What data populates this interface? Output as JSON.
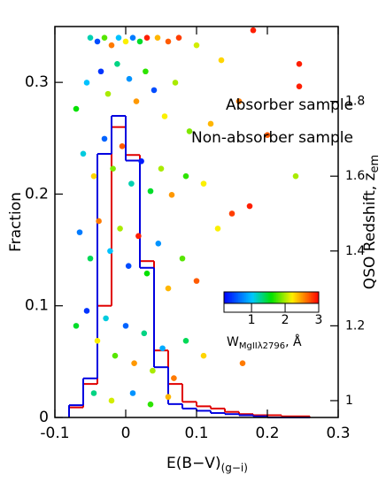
{
  "chart_data": [
    {
      "type": "histogram",
      "xlabel": {
        "text": "E(B−V)",
        "sub": "(g−i)"
      },
      "ylabel": "Fraction",
      "xlim": [
        -0.1,
        0.3
      ],
      "xticks": [
        -0.1,
        0,
        0.1,
        0.2,
        0.3
      ],
      "ylim": [
        0,
        0.35
      ],
      "yticks": [
        0,
        0.1,
        0.2,
        0.3
      ],
      "bins": [
        -0.08,
        -0.06,
        -0.04,
        -0.02,
        0,
        0.02,
        0.04,
        0.06,
        0.08,
        0.1,
        0.12,
        0.14,
        0.16,
        0.18,
        0.2,
        0.22,
        0.24,
        0.26
      ],
      "series": [
        {
          "name": "Absorber sample",
          "color": "#e00000",
          "values": [
            0.009,
            0.03,
            0.1,
            0.26,
            0.235,
            0.14,
            0.06,
            0.03,
            0.014,
            0.01,
            0.008,
            0.005,
            0.003,
            0.002,
            0.002,
            0.001,
            0.001
          ]
        },
        {
          "name": "Non-absorber sample",
          "color": "#0000e0",
          "values": [
            0.011,
            0.035,
            0.236,
            0.27,
            0.23,
            0.134,
            0.045,
            0.012,
            0.008,
            0.006,
            0.004,
            0.003,
            0.002,
            0.001,
            0,
            0,
            0
          ]
        }
      ]
    },
    {
      "type": "scatter",
      "y2label": {
        "text": "QSO Redshift, z",
        "sub": "em"
      },
      "y2lim": [
        0.955,
        2.0
      ],
      "y2ticks": [
        1,
        1.2,
        1.4,
        1.6,
        1.8
      ],
      "colorbar": {
        "clim": [
          0.18,
          3.0
        ],
        "ticks": [
          1,
          2,
          3
        ],
        "label": {
          "text": "W",
          "sub": "MgIIλ2796",
          "suffix": ", Å"
        }
      },
      "points": [
        {
          "x": -0.05,
          "y": 1.97,
          "w": 1.2
        },
        {
          "x": -0.04,
          "y": 1.96,
          "w": 0.5
        },
        {
          "x": -0.03,
          "y": 1.97,
          "w": 1.8
        },
        {
          "x": -0.02,
          "y": 1.95,
          "w": 2.6
        },
        {
          "x": -0.01,
          "y": 1.97,
          "w": 1.0
        },
        {
          "x": 0,
          "y": 1.96,
          "w": 2.2
        },
        {
          "x": 0.01,
          "y": 1.97,
          "w": 0.7
        },
        {
          "x": 0.02,
          "y": 1.96,
          "w": 1.5
        },
        {
          "x": 0.03,
          "y": 1.97,
          "w": 2.9
        },
        {
          "x": 0.045,
          "y": 1.97,
          "w": 2.4
        },
        {
          "x": 0.06,
          "y": 1.96,
          "w": 2.7
        },
        {
          "x": 0.075,
          "y": 1.97,
          "w": 2.8
        },
        {
          "x": 0.1,
          "y": 1.95,
          "w": 2.1
        },
        {
          "x": 0.135,
          "y": 1.91,
          "w": 2.3
        },
        {
          "x": 0.18,
          "y": 1.99,
          "w": 2.9
        },
        {
          "x": 0.245,
          "y": 1.9,
          "w": 2.9
        },
        {
          "x": 0.245,
          "y": 1.84,
          "w": 2.9
        },
        {
          "x": -0.07,
          "y": 1.78,
          "w": 1.6
        },
        {
          "x": -0.055,
          "y": 1.85,
          "w": 1.0
        },
        {
          "x": -0.035,
          "y": 1.88,
          "w": 0.4
        },
        {
          "x": -0.025,
          "y": 1.82,
          "w": 2.0
        },
        {
          "x": -0.012,
          "y": 1.9,
          "w": 1.3
        },
        {
          "x": 0.005,
          "y": 1.86,
          "w": 0.8
        },
        {
          "x": 0.015,
          "y": 1.8,
          "w": 2.5
        },
        {
          "x": 0.028,
          "y": 1.88,
          "w": 1.7
        },
        {
          "x": 0.04,
          "y": 1.83,
          "w": 0.5
        },
        {
          "x": 0.055,
          "y": 1.76,
          "w": 2.2
        },
        {
          "x": 0.07,
          "y": 1.85,
          "w": 2.0
        },
        {
          "x": 0.09,
          "y": 1.72,
          "w": 1.9
        },
        {
          "x": 0.12,
          "y": 1.74,
          "w": 2.4
        },
        {
          "x": 0.16,
          "y": 1.8,
          "w": 2.6
        },
        {
          "x": 0.2,
          "y": 1.71,
          "w": 2.7
        },
        {
          "x": -0.06,
          "y": 1.66,
          "w": 1.1
        },
        {
          "x": -0.045,
          "y": 1.6,
          "w": 2.3
        },
        {
          "x": -0.03,
          "y": 1.7,
          "w": 0.6
        },
        {
          "x": -0.018,
          "y": 1.62,
          "w": 1.9
        },
        {
          "x": -0.005,
          "y": 1.68,
          "w": 2.7
        },
        {
          "x": 0.008,
          "y": 1.58,
          "w": 1.2
        },
        {
          "x": 0.022,
          "y": 1.64,
          "w": 0.3
        },
        {
          "x": 0.035,
          "y": 1.56,
          "w": 1.5
        },
        {
          "x": 0.05,
          "y": 1.62,
          "w": 2.0
        },
        {
          "x": 0.065,
          "y": 1.55,
          "w": 2.5
        },
        {
          "x": 0.085,
          "y": 1.6,
          "w": 1.7
        },
        {
          "x": 0.11,
          "y": 1.58,
          "w": 2.2
        },
        {
          "x": 0.15,
          "y": 1.5,
          "w": 2.8
        },
        {
          "x": 0.24,
          "y": 1.6,
          "w": 2.0
        },
        {
          "x": -0.065,
          "y": 1.45,
          "w": 0.7
        },
        {
          "x": -0.05,
          "y": 1.38,
          "w": 1.4
        },
        {
          "x": -0.038,
          "y": 1.48,
          "w": 2.6
        },
        {
          "x": -0.022,
          "y": 1.4,
          "w": 1.0
        },
        {
          "x": -0.008,
          "y": 1.46,
          "w": 2.0
        },
        {
          "x": 0.004,
          "y": 1.36,
          "w": 0.5
        },
        {
          "x": 0.018,
          "y": 1.44,
          "w": 2.9
        },
        {
          "x": 0.03,
          "y": 1.34,
          "w": 1.6
        },
        {
          "x": 0.046,
          "y": 1.42,
          "w": 0.8
        },
        {
          "x": 0.06,
          "y": 1.3,
          "w": 2.4
        },
        {
          "x": 0.08,
          "y": 1.38,
          "w": 1.8
        },
        {
          "x": 0.1,
          "y": 1.32,
          "w": 2.7
        },
        {
          "x": 0.13,
          "y": 1.46,
          "w": 2.2
        },
        {
          "x": 0.175,
          "y": 1.52,
          "w": 2.9
        },
        {
          "x": -0.07,
          "y": 1.2,
          "w": 1.5
        },
        {
          "x": -0.055,
          "y": 1.24,
          "w": 0.4
        },
        {
          "x": -0.04,
          "y": 1.16,
          "w": 2.2
        },
        {
          "x": -0.028,
          "y": 1.22,
          "w": 1.1
        },
        {
          "x": -0.015,
          "y": 1.12,
          "w": 1.8
        },
        {
          "x": 0,
          "y": 1.2,
          "w": 0.6
        },
        {
          "x": 0.012,
          "y": 1.1,
          "w": 2.5
        },
        {
          "x": 0.026,
          "y": 1.18,
          "w": 1.3
        },
        {
          "x": 0.038,
          "y": 1.08,
          "w": 2.0
        },
        {
          "x": 0.052,
          "y": 1.14,
          "w": 0.9
        },
        {
          "x": 0.068,
          "y": 1.06,
          "w": 2.6
        },
        {
          "x": 0.085,
          "y": 1.16,
          "w": 1.4
        },
        {
          "x": 0.11,
          "y": 1.12,
          "w": 2.3
        },
        {
          "x": 0.165,
          "y": 1.1,
          "w": 2.6
        },
        {
          "x": -0.045,
          "y": 1.02,
          "w": 1.3
        },
        {
          "x": -0.02,
          "y": 1.0,
          "w": 2.1
        },
        {
          "x": 0.01,
          "y": 1.02,
          "w": 0.8
        },
        {
          "x": 0.035,
          "y": 0.99,
          "w": 1.7
        },
        {
          "x": 0.06,
          "y": 1.01,
          "w": 2.4
        }
      ]
    }
  ]
}
